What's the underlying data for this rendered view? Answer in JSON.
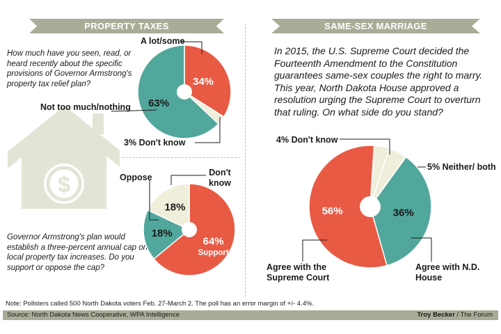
{
  "property_taxes": {
    "banner": "PROPERTY TAXES",
    "question_1": "How much have you seen, read, or heard recently about the specific provisions of Governor Armstrong's property tax relief plan?",
    "question_2": "Governor Armstrong's plan would establish a three-percent annual cap on local property tax increases. Do you support or oppose the cap?"
  },
  "same_sex_marriage": {
    "banner": "SAME-SEX MARRIAGE",
    "question": "In 2015, the U.S. Supreme Court decided the Fourteenth Amendment to the Constitution guarantees same-sex couples the right to marry. This year, North Dakota House approved a resolution urging the Supreme Court to overturn that ruling. On what side do you stand?"
  },
  "chart_data": [
    {
      "type": "pie",
      "labels": [
        "A lot/some",
        "Don't know",
        "Not too much/nothing"
      ],
      "values": [
        34,
        3,
        63
      ],
      "value_labels": [
        "34%",
        "3%",
        "63%"
      ]
    },
    {
      "type": "pie",
      "labels": [
        "Support",
        "Oppose",
        "Don't know"
      ],
      "values": [
        64,
        18,
        18
      ],
      "value_labels": [
        "64%",
        "18%",
        "18%"
      ]
    },
    {
      "type": "pie",
      "labels": [
        "Neither/ both",
        "Agree with N.D. House",
        "Agree with the Supreme Court",
        "Don't know"
      ],
      "values": [
        5,
        36,
        56,
        4
      ],
      "value_labels": [
        "5%",
        "36%",
        "56%",
        "4%"
      ]
    }
  ],
  "colors": {
    "red": "#e85a43",
    "teal": "#52a79c",
    "cream": "#efeedb",
    "banner": "#a9ad98",
    "house": "#e3e4d5"
  },
  "icons": {
    "house": "house-dollar-icon"
  },
  "note": "Note: Pollsters called 500 North Dakota voters Feb. 27-March 2. The poll has an error margin of +/- 4.4%.",
  "footer": {
    "source": "Source: North Dakota News Cooperative, WPA Intelligence",
    "credit_name": "Troy Becker",
    "credit_org": " / The Forum"
  }
}
